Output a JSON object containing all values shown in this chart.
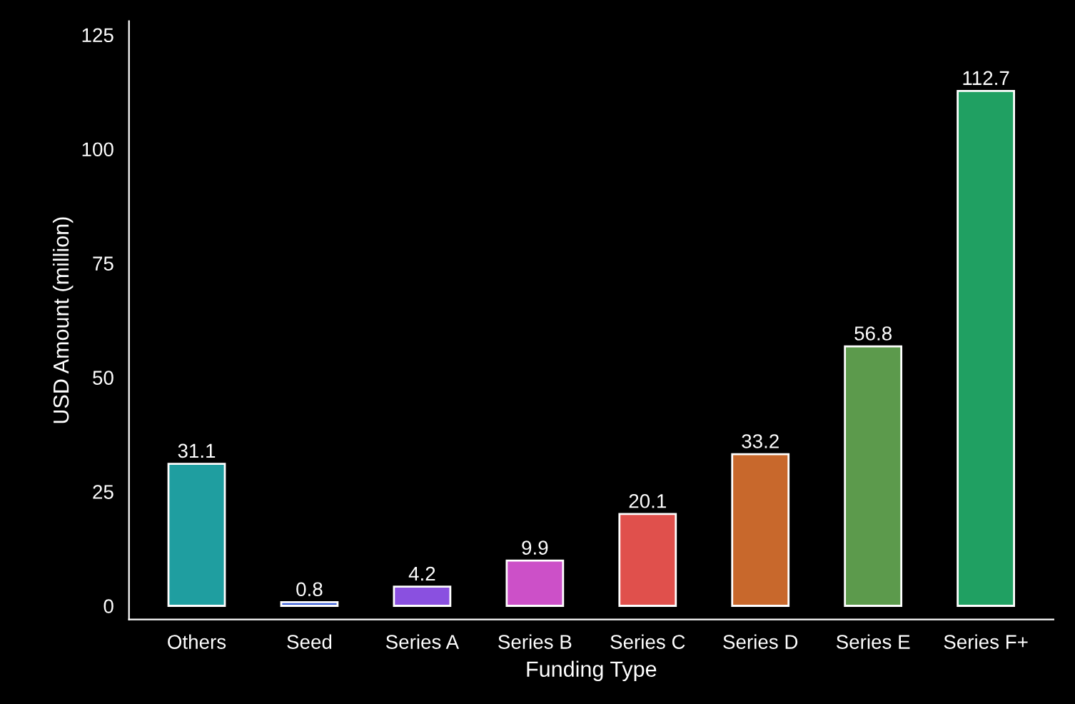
{
  "chart_data": {
    "type": "bar",
    "xlabel": "Funding Type",
    "ylabel": "USD Amount (million)",
    "categories": [
      "Others",
      "Seed",
      "Series A",
      "Series B",
      "Series C",
      "Series D",
      "Series E",
      "Series F+"
    ],
    "values": [
      31.1,
      0.8,
      4.2,
      9.9,
      20.1,
      33.2,
      56.8,
      112.7
    ],
    "colors": [
      "#1f9ea0",
      "#3a5ed8",
      "#8a50e0",
      "#cc50c8",
      "#e0504c",
      "#c8682c",
      "#5c9a4c",
      "#20a062"
    ],
    "ylim": [
      -3,
      128
    ],
    "yticks": [
      0,
      25,
      50,
      75,
      100,
      125
    ],
    "data_labels": true,
    "grid": false
  }
}
